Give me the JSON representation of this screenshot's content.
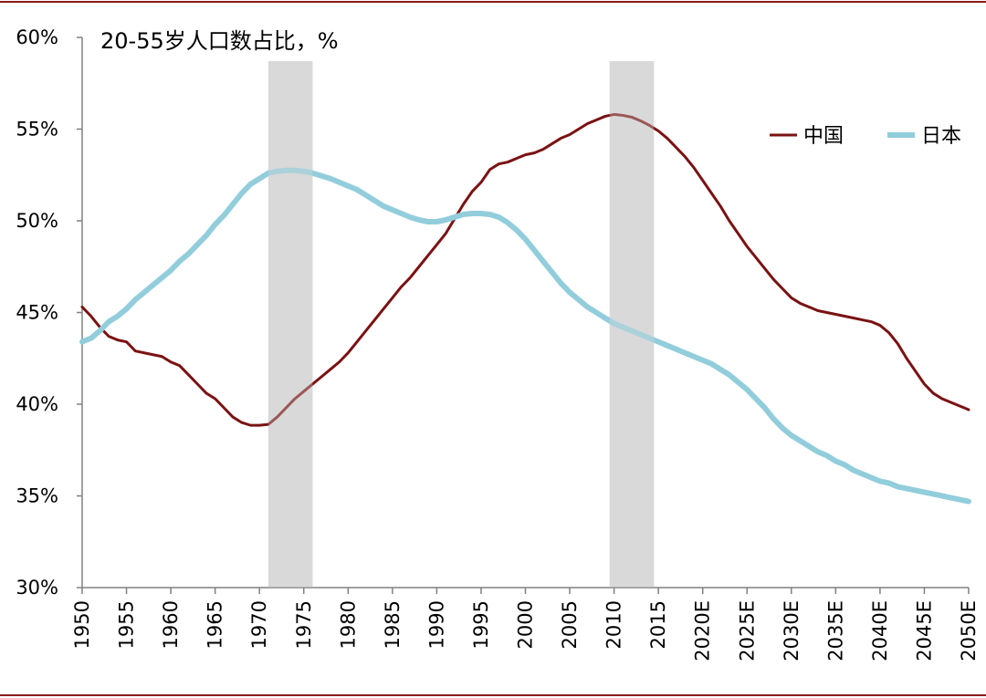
{
  "chart_data": {
    "type": "line",
    "title": "20-55岁人口数占比，%",
    "xlabel": "",
    "ylabel": "",
    "ylim": [
      30,
      60
    ],
    "y_ticks": [
      "30%",
      "35%",
      "40%",
      "45%",
      "50%",
      "55%",
      "60%"
    ],
    "y_tick_values": [
      30,
      35,
      40,
      45,
      50,
      55,
      60
    ],
    "x_ticks": [
      "1950",
      "1955",
      "1960",
      "1965",
      "1970",
      "1975",
      "1980",
      "1985",
      "1990",
      "1995",
      "2000",
      "2005",
      "2010",
      "2015",
      "2020E",
      "2025E",
      "2030E",
      "2035E",
      "2040E",
      "2045E",
      "2050E"
    ],
    "x_tick_values": [
      1950,
      1955,
      1960,
      1965,
      1970,
      1975,
      1980,
      1985,
      1990,
      1995,
      2000,
      2005,
      2010,
      2015,
      2020,
      2025,
      2030,
      2035,
      2040,
      2045,
      2050
    ],
    "xlim": [
      1950,
      2050
    ],
    "shaded_ranges": [
      [
        1971,
        1976
      ],
      [
        2009.5,
        2014.5
      ]
    ],
    "grid": false,
    "legend_position": "top-right",
    "series": [
      {
        "name": "中国",
        "color": "#7a1212",
        "x": [
          1950,
          1951,
          1952,
          1953,
          1954,
          1955,
          1956,
          1957,
          1958,
          1959,
          1960,
          1961,
          1962,
          1963,
          1964,
          1965,
          1966,
          1967,
          1968,
          1969,
          1970,
          1971,
          1972,
          1973,
          1974,
          1975,
          1976,
          1977,
          1978,
          1979,
          1980,
          1981,
          1982,
          1983,
          1984,
          1985,
          1986,
          1987,
          1988,
          1989,
          1990,
          1991,
          1992,
          1993,
          1994,
          1995,
          1996,
          1997,
          1998,
          1999,
          2000,
          2001,
          2002,
          2003,
          2004,
          2005,
          2006,
          2007,
          2008,
          2009,
          2010,
          2011,
          2012,
          2013,
          2014,
          2015,
          2016,
          2017,
          2018,
          2019,
          2020,
          2021,
          2022,
          2023,
          2024,
          2025,
          2026,
          2027,
          2028,
          2029,
          2030,
          2031,
          2032,
          2033,
          2034,
          2035,
          2036,
          2037,
          2038,
          2039,
          2040,
          2041,
          2042,
          2043,
          2044,
          2045,
          2046,
          2047,
          2048,
          2049,
          2050
        ],
        "values": [
          45.3,
          44.8,
          44.2,
          43.7,
          43.5,
          43.4,
          42.9,
          42.8,
          42.7,
          42.6,
          42.3,
          42.1,
          41.6,
          41.1,
          40.6,
          40.3,
          39.8,
          39.3,
          39.0,
          38.85,
          38.85,
          38.9,
          39.3,
          39.8,
          40.3,
          40.7,
          41.1,
          41.5,
          41.9,
          42.3,
          42.8,
          43.4,
          44.0,
          44.6,
          45.2,
          45.8,
          46.4,
          46.9,
          47.5,
          48.1,
          48.7,
          49.3,
          50.1,
          50.9,
          51.6,
          52.1,
          52.8,
          53.1,
          53.2,
          53.4,
          53.6,
          53.7,
          53.9,
          54.2,
          54.5,
          54.7,
          55.0,
          55.3,
          55.5,
          55.7,
          55.8,
          55.75,
          55.65,
          55.45,
          55.2,
          54.9,
          54.5,
          54.0,
          53.5,
          52.9,
          52.2,
          51.5,
          50.8,
          50.0,
          49.3,
          48.6,
          48.0,
          47.4,
          46.8,
          46.3,
          45.8,
          45.5,
          45.3,
          45.1,
          45.0,
          44.9,
          44.8,
          44.7,
          44.6,
          44.5,
          44.3,
          43.9,
          43.3,
          42.5,
          41.8,
          41.1,
          40.6,
          40.3,
          40.1,
          39.9,
          39.7
        ]
      },
      {
        "name": "日本",
        "color": "#92cddc",
        "x": [
          1950,
          1951,
          1952,
          1953,
          1954,
          1955,
          1956,
          1957,
          1958,
          1959,
          1960,
          1961,
          1962,
          1963,
          1964,
          1965,
          1966,
          1967,
          1968,
          1969,
          1970,
          1971,
          1972,
          1973,
          1974,
          1975,
          1976,
          1977,
          1978,
          1979,
          1980,
          1981,
          1982,
          1983,
          1984,
          1985,
          1986,
          1987,
          1988,
          1989,
          1990,
          1991,
          1992,
          1993,
          1994,
          1995,
          1996,
          1997,
          1998,
          1999,
          2000,
          2001,
          2002,
          2003,
          2004,
          2005,
          2006,
          2007,
          2008,
          2009,
          2010,
          2011,
          2012,
          2013,
          2014,
          2015,
          2016,
          2017,
          2018,
          2019,
          2020,
          2021,
          2022,
          2023,
          2024,
          2025,
          2026,
          2027,
          2028,
          2029,
          2030,
          2031,
          2032,
          2033,
          2034,
          2035,
          2036,
          2037,
          2038,
          2039,
          2040,
          2041,
          2042,
          2043,
          2044,
          2045,
          2046,
          2047,
          2048,
          2049,
          2050
        ],
        "values": [
          43.4,
          43.6,
          44.0,
          44.5,
          44.8,
          45.2,
          45.7,
          46.1,
          46.5,
          46.9,
          47.3,
          47.8,
          48.2,
          48.7,
          49.2,
          49.8,
          50.3,
          50.9,
          51.5,
          52.0,
          52.3,
          52.6,
          52.7,
          52.75,
          52.75,
          52.7,
          52.6,
          52.45,
          52.3,
          52.1,
          51.9,
          51.7,
          51.4,
          51.1,
          50.8,
          50.6,
          50.4,
          50.2,
          50.05,
          49.95,
          49.95,
          50.05,
          50.2,
          50.35,
          50.4,
          50.4,
          50.35,
          50.2,
          49.9,
          49.5,
          49.0,
          48.4,
          47.8,
          47.2,
          46.6,
          46.1,
          45.7,
          45.3,
          45.0,
          44.7,
          44.4,
          44.2,
          44.0,
          43.8,
          43.6,
          43.4,
          43.2,
          43.0,
          42.8,
          42.6,
          42.4,
          42.2,
          41.9,
          41.6,
          41.2,
          40.8,
          40.3,
          39.8,
          39.2,
          38.7,
          38.3,
          38.0,
          37.7,
          37.4,
          37.2,
          36.9,
          36.7,
          36.4,
          36.2,
          36.0,
          35.8,
          35.7,
          35.5,
          35.4,
          35.3,
          35.2,
          35.1,
          35.0,
          34.9,
          34.8,
          34.7
        ]
      }
    ]
  }
}
